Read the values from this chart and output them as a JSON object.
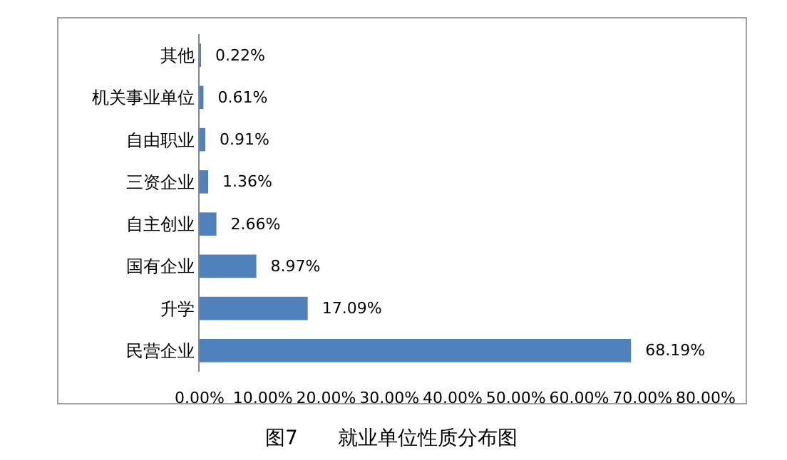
{
  "chart_data": {
    "type": "bar",
    "orientation": "horizontal",
    "categories": [
      "其他",
      "机关事业单位",
      "自由职业",
      "三资企业",
      "自主创业",
      "国有企业",
      "升学",
      "民营企业"
    ],
    "values": [
      0.22,
      0.61,
      0.91,
      1.36,
      2.66,
      8.97,
      17.09,
      68.19
    ],
    "value_labels": [
      "0.22%",
      "0.61%",
      "0.91%",
      "1.36%",
      "2.66%",
      "8.97%",
      "17.09%",
      "68.19%"
    ],
    "color": "#4f81bd",
    "xlim": [
      0,
      80
    ],
    "xticks": [
      {
        "value": 0,
        "label": "0.00%"
      },
      {
        "value": 10,
        "label": "10.00%"
      },
      {
        "value": 20,
        "label": "20.00%"
      },
      {
        "value": 30,
        "label": "30.00%"
      },
      {
        "value": 40,
        "label": "40.00%"
      },
      {
        "value": 50,
        "label": "50.00%"
      },
      {
        "value": 60,
        "label": "60.00%"
      },
      {
        "value": 70,
        "label": "70.00%"
      },
      {
        "value": 80,
        "label": "80.00%"
      }
    ],
    "grid": false,
    "legend": false,
    "annotations": [
      "图7　　就业单位性质分布图"
    ]
  }
}
